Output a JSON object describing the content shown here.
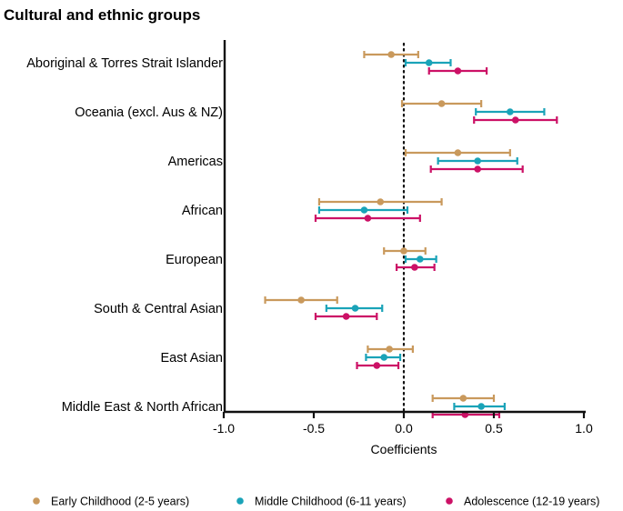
{
  "chart_data": {
    "type": "forest",
    "title": "Cultural and ethnic groups",
    "xlabel": "Coefficients",
    "xlim": [
      -1.0,
      1.0
    ],
    "xticks": [
      -1.0,
      -0.5,
      0.0,
      0.5,
      1.0
    ],
    "xtick_labels": [
      "-1.0",
      "-0.5",
      "0.0",
      "0.5",
      "1.0"
    ],
    "reference_line": 0.0,
    "categories": [
      "Aboriginal & Torres Strait Islander",
      "Oceania (excl. Aus & NZ)",
      "Americas",
      "African",
      "European",
      "South & Central Asian",
      "East Asian",
      "Middle East & North African"
    ],
    "series": [
      {
        "name": "Early Childhood (2-5 years)",
        "color": "#c9995c",
        "estimates": [
          -0.07,
          0.21,
          0.3,
          -0.13,
          0.0,
          -0.57,
          -0.08,
          0.33
        ],
        "lower": [
          -0.22,
          -0.01,
          0.01,
          -0.47,
          -0.11,
          -0.77,
          -0.2,
          0.16
        ],
        "upper": [
          0.08,
          0.43,
          0.59,
          0.21,
          0.12,
          -0.37,
          0.05,
          0.5
        ]
      },
      {
        "name": "Middle Childhood (6-11 years)",
        "color": "#1aa3b8",
        "estimates": [
          0.14,
          0.59,
          0.41,
          -0.22,
          0.09,
          -0.27,
          -0.11,
          0.43
        ],
        "lower": [
          0.01,
          0.4,
          0.19,
          -0.47,
          0.01,
          -0.43,
          -0.21,
          0.28
        ],
        "upper": [
          0.26,
          0.78,
          0.63,
          0.02,
          0.18,
          -0.12,
          -0.02,
          0.56
        ]
      },
      {
        "name": "Adolescence (12-19 years)",
        "color": "#cc1166",
        "estimates": [
          0.3,
          0.62,
          0.41,
          -0.2,
          0.06,
          -0.32,
          -0.15,
          0.34
        ],
        "lower": [
          0.14,
          0.39,
          0.15,
          -0.49,
          -0.04,
          -0.49,
          -0.26,
          0.16
        ],
        "upper": [
          0.46,
          0.85,
          0.66,
          0.09,
          0.17,
          -0.15,
          -0.03,
          0.53
        ]
      }
    ],
    "legend_position": "bottom"
  }
}
